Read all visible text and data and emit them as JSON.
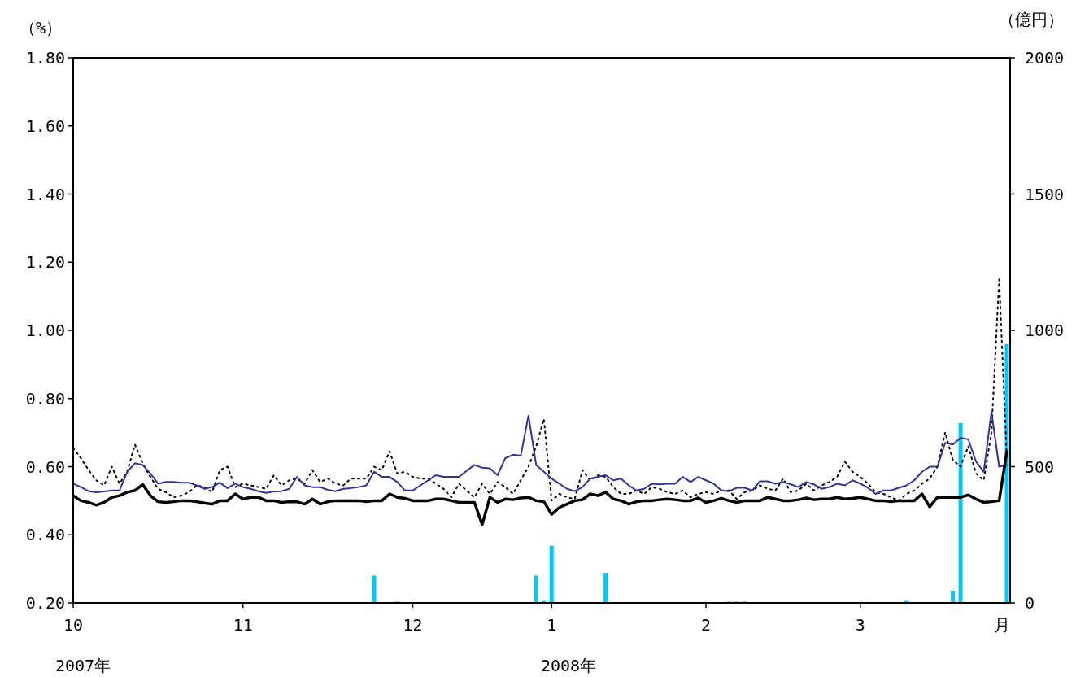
{
  "chart_data": {
    "type": "line",
    "ylabel": "（%）",
    "y2label": "（億円）",
    "xlabel": "月",
    "annotations": [
      "2007年",
      "2008年"
    ],
    "categories": [
      "10",
      null,
      null,
      null,
      null,
      null,
      null,
      null,
      null,
      null,
      null,
      null,
      null,
      null,
      null,
      null,
      null,
      null,
      null,
      null,
      null,
      null,
      "11",
      null,
      null,
      null,
      null,
      null,
      null,
      null,
      null,
      null,
      null,
      null,
      null,
      null,
      null,
      null,
      null,
      null,
      null,
      null,
      null,
      null,
      "12",
      null,
      null,
      null,
      null,
      null,
      null,
      null,
      null,
      null,
      null,
      null,
      null,
      null,
      null,
      null,
      null,
      null,
      "1",
      null,
      null,
      null,
      null,
      null,
      null,
      null,
      null,
      null,
      null,
      null,
      null,
      null,
      null,
      null,
      null,
      null,
      null,
      null,
      "2",
      null,
      null,
      null,
      null,
      null,
      null,
      null,
      null,
      null,
      null,
      null,
      null,
      null,
      null,
      null,
      null,
      null,
      null,
      null,
      "3",
      null,
      null,
      null,
      null,
      null,
      null,
      null,
      null,
      null,
      null,
      null,
      null,
      null,
      null,
      null,
      null,
      null,
      null,
      null
    ],
    "ylim": [
      0.2,
      1.8
    ],
    "yticks": [
      {
        "value": 0.2,
        "label": "0.20"
      },
      {
        "value": 0.4,
        "label": "0.40"
      },
      {
        "value": 0.6,
        "label": "0.60"
      },
      {
        "value": 0.8,
        "label": "0.80"
      },
      {
        "value": 1.0,
        "label": "1.00"
      },
      {
        "value": 1.2,
        "label": "1.20"
      },
      {
        "value": 1.4,
        "label": "1.40"
      },
      {
        "value": 1.6,
        "label": "1.60"
      },
      {
        "value": 1.8,
        "label": "1.80"
      }
    ],
    "y2lim": [
      0,
      2000
    ],
    "y2ticks": [
      0,
      500,
      1000,
      1500,
      2000
    ],
    "grid": false,
    "series": [
      {
        "type": "bar",
        "axis": "y2",
        "color": "#00c8f8",
        "values": [
          null,
          null,
          null,
          null,
          null,
          null,
          null,
          null,
          null,
          null,
          null,
          null,
          null,
          null,
          null,
          null,
          null,
          null,
          null,
          null,
          null,
          null,
          null,
          null,
          null,
          null,
          null,
          null,
          null,
          null,
          null,
          null,
          null,
          null,
          null,
          null,
          null,
          null,
          null,
          100,
          null,
          null,
          5,
          null,
          null,
          null,
          null,
          null,
          null,
          null,
          null,
          null,
          null,
          null,
          null,
          null,
          null,
          null,
          null,
          null,
          100,
          10,
          210,
          null,
          null,
          null,
          null,
          null,
          null,
          110,
          null,
          null,
          null,
          null,
          null,
          null,
          null,
          null,
          null,
          null,
          null,
          null,
          null,
          null,
          null,
          5,
          5,
          5,
          null,
          null,
          null,
          null,
          null,
          null,
          null,
          null,
          null,
          null,
          null,
          null,
          null,
          null,
          null,
          null,
          null,
          null,
          null,
          null,
          10,
          null,
          null,
          null,
          null,
          null,
          45,
          660,
          null,
          null,
          null,
          null,
          null,
          950
        ]
      },
      {
        "line_style": "dotted",
        "color": "#000000",
        "values": [
          0.655,
          0.625,
          0.59,
          0.56,
          0.545,
          0.6,
          0.55,
          0.585,
          0.665,
          0.61,
          0.57,
          0.535,
          0.525,
          0.51,
          0.515,
          0.525,
          0.545,
          0.54,
          0.525,
          0.59,
          0.6,
          0.54,
          0.55,
          0.545,
          0.54,
          0.535,
          0.575,
          0.545,
          0.56,
          0.565,
          0.55,
          0.59,
          0.555,
          0.565,
          0.55,
          0.545,
          0.565,
          0.565,
          0.565,
          0.6,
          0.59,
          0.645,
          0.58,
          0.585,
          0.57,
          0.565,
          0.565,
          0.55,
          0.535,
          0.51,
          0.55,
          0.53,
          0.51,
          0.55,
          0.52,
          0.555,
          0.54,
          0.52,
          0.56,
          0.6,
          0.66,
          0.74,
          0.5,
          0.52,
          0.51,
          0.505,
          0.59,
          0.56,
          0.575,
          0.57,
          0.54,
          0.52,
          0.52,
          0.53,
          0.52,
          0.54,
          0.535,
          0.525,
          0.52,
          0.53,
          0.51,
          0.52,
          0.525,
          0.52,
          0.53,
          0.53,
          0.505,
          0.525,
          0.53,
          0.545,
          0.535,
          0.53,
          0.565,
          0.525,
          0.53,
          0.55,
          0.53,
          0.545,
          0.555,
          0.57,
          0.615,
          0.585,
          0.57,
          0.55,
          0.525,
          0.52,
          0.51,
          0.5,
          0.52,
          0.53,
          0.55,
          0.565,
          0.6,
          0.7,
          0.62,
          0.6,
          0.66,
          0.58,
          0.56,
          0.7,
          1.15,
          0.62
        ]
      },
      {
        "line_style": "solid",
        "color": "#333399",
        "values": [
          0.55,
          0.54,
          0.528,
          0.525,
          0.527,
          0.53,
          0.53,
          0.585,
          0.61,
          0.605,
          0.58,
          0.55,
          0.555,
          0.555,
          0.553,
          0.553,
          0.545,
          0.535,
          0.54,
          0.553,
          0.537,
          0.55,
          0.54,
          0.535,
          0.528,
          0.523,
          0.527,
          0.528,
          0.535,
          0.57,
          0.545,
          0.54,
          0.54,
          0.532,
          0.528,
          0.535,
          0.537,
          0.54,
          0.545,
          0.585,
          0.57,
          0.57,
          0.555,
          0.53,
          0.53,
          0.545,
          0.56,
          0.575,
          0.57,
          0.57,
          0.57,
          0.588,
          0.605,
          0.597,
          0.595,
          0.575,
          0.625,
          0.635,
          0.632,
          0.75,
          0.605,
          0.585,
          0.565,
          0.55,
          0.535,
          0.528,
          0.54,
          0.565,
          0.57,
          0.575,
          0.56,
          0.565,
          0.545,
          0.53,
          0.535,
          0.55,
          0.548,
          0.55,
          0.55,
          0.57,
          0.555,
          0.57,
          0.56,
          0.55,
          0.53,
          0.528,
          0.538,
          0.538,
          0.53,
          0.557,
          0.557,
          0.55,
          0.555,
          0.548,
          0.54,
          0.555,
          0.548,
          0.535,
          0.54,
          0.55,
          0.545,
          0.56,
          0.55,
          0.538,
          0.52,
          0.53,
          0.53,
          0.538,
          0.545,
          0.56,
          0.585,
          0.6,
          0.6,
          0.67,
          0.665,
          0.685,
          0.68,
          0.615,
          0.585,
          0.76,
          0.6,
          0.605
        ]
      },
      {
        "line_style": "solid",
        "color": "#000000",
        "values": [
          0.515,
          0.5,
          0.495,
          0.487,
          0.495,
          0.51,
          0.515,
          0.525,
          0.53,
          0.548,
          0.515,
          0.497,
          0.495,
          0.497,
          0.5,
          0.5,
          0.497,
          0.493,
          0.49,
          0.5,
          0.5,
          0.52,
          0.505,
          0.51,
          0.51,
          0.5,
          0.5,
          0.495,
          0.497,
          0.497,
          0.49,
          0.505,
          0.49,
          0.497,
          0.5,
          0.5,
          0.5,
          0.5,
          0.497,
          0.5,
          0.5,
          0.52,
          0.51,
          0.507,
          0.5,
          0.5,
          0.5,
          0.505,
          0.505,
          0.5,
          0.495,
          0.495,
          0.495,
          0.43,
          0.51,
          0.495,
          0.505,
          0.503,
          0.508,
          0.51,
          0.5,
          0.497,
          0.46,
          0.48,
          0.49,
          0.5,
          0.503,
          0.52,
          0.515,
          0.525,
          0.505,
          0.5,
          0.49,
          0.497,
          0.5,
          0.5,
          0.503,
          0.505,
          0.503,
          0.5,
          0.5,
          0.508,
          0.495,
          0.5,
          0.507,
          0.5,
          0.495,
          0.5,
          0.5,
          0.5,
          0.51,
          0.505,
          0.5,
          0.5,
          0.503,
          0.508,
          0.503,
          0.505,
          0.505,
          0.51,
          0.505,
          0.507,
          0.51,
          0.505,
          0.5,
          0.5,
          0.497,
          0.5,
          0.5,
          0.5,
          0.52,
          0.482,
          0.51,
          0.51,
          0.51,
          0.51,
          0.517,
          0.505,
          0.495,
          0.497,
          0.5,
          0.645
        ]
      }
    ]
  }
}
